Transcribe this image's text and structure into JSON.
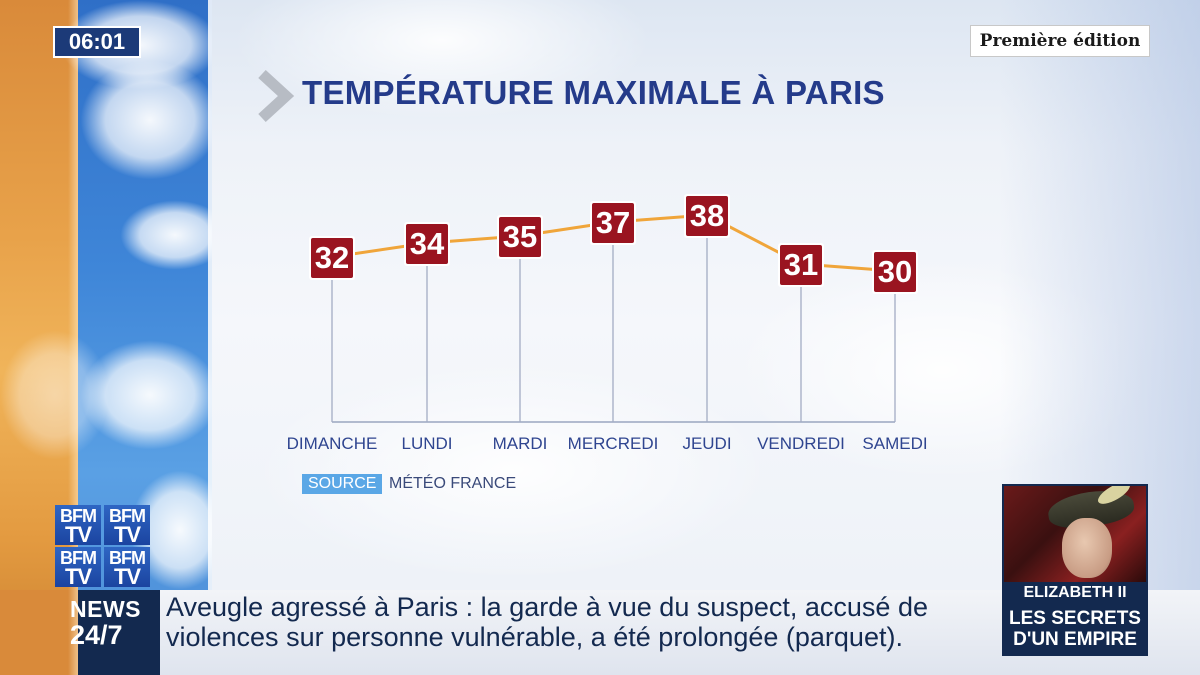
{
  "clock": {
    "time": "06:01"
  },
  "edition_badge": {
    "label": "Première édition"
  },
  "chart_data": {
    "type": "line",
    "title": "TEMPÉRATURE MAXIMALE À PARIS",
    "categories": [
      "DIMANCHE",
      "LUNDI",
      "MARDI",
      "MERCREDI",
      "JEUDI",
      "VENDREDI",
      "SAMEDI"
    ],
    "values": [
      32,
      34,
      35,
      37,
      38,
      31,
      30
    ],
    "data_labels": [
      "32",
      "34",
      "35",
      "37",
      "38",
      "31",
      "30"
    ],
    "grid": false,
    "line_color": "#f0a53a",
    "marker_color": "#9a1420"
  },
  "source": {
    "tag": "SOURCE",
    "value": "MÉTÉO FRANCE"
  },
  "logo": {
    "line1": "BFM",
    "line2": "TV"
  },
  "ticker": {
    "brand_news": "NEWS",
    "brand_24": "24/7",
    "headline": "Aveugle agressé à Paris : la garde à vue du suspect, accusé de violences sur personne vulnérable, a été prolongée (parquet)."
  },
  "promo": {
    "name": "ELIZABETH II",
    "tagline_1": "LES SECRETS",
    "tagline_2": "D'UN EMPIRE"
  }
}
